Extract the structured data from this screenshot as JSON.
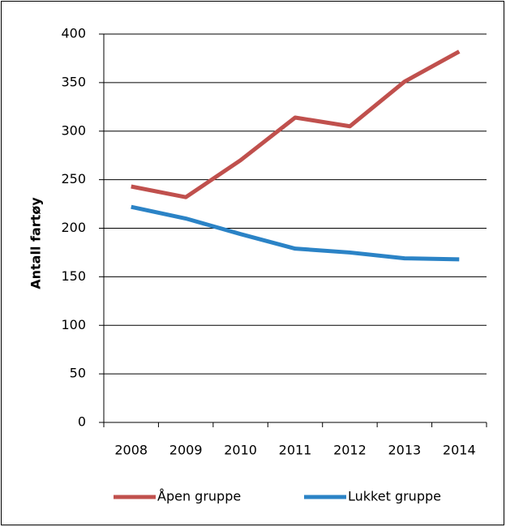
{
  "chart_data": {
    "type": "line",
    "y_label": "Antall fartøy",
    "categories": [
      "2008",
      "2009",
      "2010",
      "2011",
      "2012",
      "2013",
      "2014"
    ],
    "series": [
      {
        "name": "Åpen gruppe",
        "color": "#c0504d",
        "values": [
          243,
          232,
          270,
          314,
          305,
          351,
          382
        ]
      },
      {
        "name": "Lukket gruppe",
        "color": "#2b83c6",
        "values": [
          222,
          210,
          194,
          179,
          175,
          169,
          168
        ]
      }
    ],
    "ylim": [
      0,
      400
    ],
    "yticks": [
      0,
      50,
      100,
      150,
      200,
      250,
      300,
      350,
      400
    ],
    "grid": true,
    "legend": "bottom"
  }
}
